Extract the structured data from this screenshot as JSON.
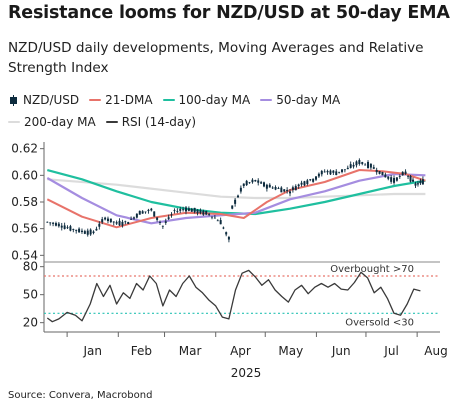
{
  "title": "Resistance looms for NZD/USD at 50-day EMA",
  "subtitle": "NZD/USD daily developments, Moving Averages and Relative Strength Index",
  "source": "Source: Convera, Macrobond",
  "colors": {
    "nzdusd": "#0d2b3e",
    "dma21": "#e8736a",
    "ma100": "#1fbf9f",
    "ma50": "#a58de0",
    "ma200": "#dcdcdc",
    "rsi": "#3a3a3a",
    "overbought": "#e8736a",
    "oversold": "#29c2b4"
  },
  "chart_data": [
    {
      "type": "line",
      "title": "",
      "year_label": "2025",
      "x_ticks": [
        "Jan",
        "Feb",
        "Mar",
        "Apr",
        "May",
        "Jun",
        "Jul",
        "Aug"
      ],
      "ylim": [
        0.535,
        0.625
      ],
      "y_ticks": [
        "0.54",
        "0.56",
        "0.58",
        "0.60",
        "0.62"
      ],
      "series": [
        {
          "name": "NZD/USD",
          "style": "candlestick",
          "values": [
            [
              "2024-12-20",
              0.565
            ],
            [
              "2024-12-27",
              0.563
            ],
            [
              "2025-01-03",
              0.56
            ],
            [
              "2025-01-10",
              0.558
            ],
            [
              "2025-01-17",
              0.557
            ],
            [
              "2025-01-24",
              0.568
            ],
            [
              "2025-01-31",
              0.564
            ],
            [
              "2025-02-07",
              0.565
            ],
            [
              "2025-02-14",
              0.572
            ],
            [
              "2025-02-21",
              0.574
            ],
            [
              "2025-02-28",
              0.562
            ],
            [
              "2025-03-07",
              0.573
            ],
            [
              "2025-03-14",
              0.575
            ],
            [
              "2025-03-21",
              0.573
            ],
            [
              "2025-03-28",
              0.571
            ],
            [
              "2025-04-04",
              0.565
            ],
            [
              "2025-04-09",
              0.552
            ],
            [
              "2025-04-11",
              0.576
            ],
            [
              "2025-04-18",
              0.593
            ],
            [
              "2025-04-25",
              0.596
            ],
            [
              "2025-05-02",
              0.592
            ],
            [
              "2025-05-09",
              0.59
            ],
            [
              "2025-05-16",
              0.588
            ],
            [
              "2025-05-23",
              0.594
            ],
            [
              "2025-05-30",
              0.597
            ],
            [
              "2025-06-06",
              0.603
            ],
            [
              "2025-06-13",
              0.602
            ],
            [
              "2025-06-20",
              0.605
            ],
            [
              "2025-06-27",
              0.61
            ],
            [
              "2025-07-04",
              0.607
            ],
            [
              "2025-07-11",
              0.601
            ],
            [
              "2025-07-18",
              0.596
            ],
            [
              "2025-07-25",
              0.602
            ],
            [
              "2025-07-31",
              0.593
            ],
            [
              "2025-08-06",
              0.596
            ]
          ]
        },
        {
          "name": "21-DMA",
          "values": [
            [
              "2024-12-20",
              0.582
            ],
            [
              "2025-01-10",
              0.569
            ],
            [
              "2025-01-31",
              0.561
            ],
            [
              "2025-02-21",
              0.568
            ],
            [
              "2025-03-14",
              0.572
            ],
            [
              "2025-04-04",
              0.571
            ],
            [
              "2025-04-18",
              0.568
            ],
            [
              "2025-05-02",
              0.58
            ],
            [
              "2025-05-16",
              0.589
            ],
            [
              "2025-06-06",
              0.595
            ],
            [
              "2025-06-27",
              0.604
            ],
            [
              "2025-07-11",
              0.603
            ],
            [
              "2025-07-25",
              0.601
            ],
            [
              "2025-08-06",
              0.596
            ]
          ]
        },
        {
          "name": "100-day MA",
          "values": [
            [
              "2024-12-20",
              0.604
            ],
            [
              "2025-01-10",
              0.597
            ],
            [
              "2025-01-31",
              0.588
            ],
            [
              "2025-02-21",
              0.58
            ],
            [
              "2025-03-14",
              0.575
            ],
            [
              "2025-04-04",
              0.572
            ],
            [
              "2025-04-25",
              0.571
            ],
            [
              "2025-05-16",
              0.575
            ],
            [
              "2025-06-06",
              0.58
            ],
            [
              "2025-06-27",
              0.586
            ],
            [
              "2025-07-18",
              0.592
            ],
            [
              "2025-08-06",
              0.596
            ]
          ]
        },
        {
          "name": "50-day MA",
          "values": [
            [
              "2024-12-20",
              0.598
            ],
            [
              "2025-01-10",
              0.583
            ],
            [
              "2025-01-31",
              0.57
            ],
            [
              "2025-02-21",
              0.564
            ],
            [
              "2025-03-14",
              0.568
            ],
            [
              "2025-04-04",
              0.57
            ],
            [
              "2025-04-25",
              0.572
            ],
            [
              "2025-05-16",
              0.582
            ],
            [
              "2025-06-06",
              0.588
            ],
            [
              "2025-06-27",
              0.596
            ],
            [
              "2025-07-18",
              0.601
            ],
            [
              "2025-08-06",
              0.6
            ]
          ]
        },
        {
          "name": "200-day MA",
          "values": [
            [
              "2024-12-20",
              0.597
            ],
            [
              "2025-01-31",
              0.593
            ],
            [
              "2025-03-14",
              0.587
            ],
            [
              "2025-04-04",
              0.584
            ],
            [
              "2025-04-25",
              0.583
            ],
            [
              "2025-05-16",
              0.583
            ],
            [
              "2025-06-06",
              0.584
            ],
            [
              "2025-06-27",
              0.585
            ],
            [
              "2025-07-18",
              0.586
            ],
            [
              "2025-08-06",
              0.586
            ]
          ]
        }
      ]
    },
    {
      "type": "line",
      "title": "",
      "ylim": [
        10,
        85
      ],
      "y_ticks": [
        "20",
        "50",
        "80"
      ],
      "reference_lines": [
        {
          "name": "Overbought",
          "value": 70,
          "label": "Overbought >70"
        },
        {
          "name": "Oversold",
          "value": 30,
          "label": "Oversold <30"
        }
      ],
      "series": [
        {
          "name": "RSI (14-day)",
          "values": [
            [
              "2024-12-20",
              25
            ],
            [
              "2024-12-23",
              21
            ],
            [
              "2024-12-27",
              24
            ],
            [
              "2025-01-01",
              31
            ],
            [
              "2025-01-06",
              28
            ],
            [
              "2025-01-10",
              22
            ],
            [
              "2025-01-15",
              40
            ],
            [
              "2025-01-19",
              62
            ],
            [
              "2025-01-23",
              48
            ],
            [
              "2025-01-27",
              60
            ],
            [
              "2025-01-31",
              40
            ],
            [
              "2025-02-04",
              52
            ],
            [
              "2025-02-08",
              46
            ],
            [
              "2025-02-12",
              62
            ],
            [
              "2025-02-16",
              55
            ],
            [
              "2025-02-20",
              70
            ],
            [
              "2025-02-24",
              62
            ],
            [
              "2025-02-28",
              38
            ],
            [
              "2025-03-04",
              55
            ],
            [
              "2025-03-08",
              48
            ],
            [
              "2025-03-12",
              62
            ],
            [
              "2025-03-16",
              70
            ],
            [
              "2025-03-20",
              58
            ],
            [
              "2025-03-24",
              52
            ],
            [
              "2025-03-28",
              44
            ],
            [
              "2025-04-01",
              38
            ],
            [
              "2025-04-05",
              26
            ],
            [
              "2025-04-09",
              24
            ],
            [
              "2025-04-13",
              55
            ],
            [
              "2025-04-17",
              73
            ],
            [
              "2025-04-21",
              76
            ],
            [
              "2025-04-25",
              69
            ],
            [
              "2025-04-29",
              60
            ],
            [
              "2025-05-03",
              66
            ],
            [
              "2025-05-07",
              55
            ],
            [
              "2025-05-11",
              48
            ],
            [
              "2025-05-15",
              42
            ],
            [
              "2025-05-19",
              55
            ],
            [
              "2025-05-23",
              60
            ],
            [
              "2025-05-27",
              51
            ],
            [
              "2025-05-31",
              58
            ],
            [
              "2025-06-04",
              62
            ],
            [
              "2025-06-08",
              58
            ],
            [
              "2025-06-12",
              62
            ],
            [
              "2025-06-16",
              56
            ],
            [
              "2025-06-20",
              55
            ],
            [
              "2025-06-24",
              63
            ],
            [
              "2025-06-28",
              74
            ],
            [
              "2025-07-02",
              68
            ],
            [
              "2025-07-06",
              52
            ],
            [
              "2025-07-10",
              58
            ],
            [
              "2025-07-14",
              46
            ],
            [
              "2025-07-18",
              30
            ],
            [
              "2025-07-22",
              28
            ],
            [
              "2025-07-26",
              40
            ],
            [
              "2025-07-30",
              56
            ],
            [
              "2025-08-03",
              54
            ]
          ]
        }
      ]
    }
  ]
}
